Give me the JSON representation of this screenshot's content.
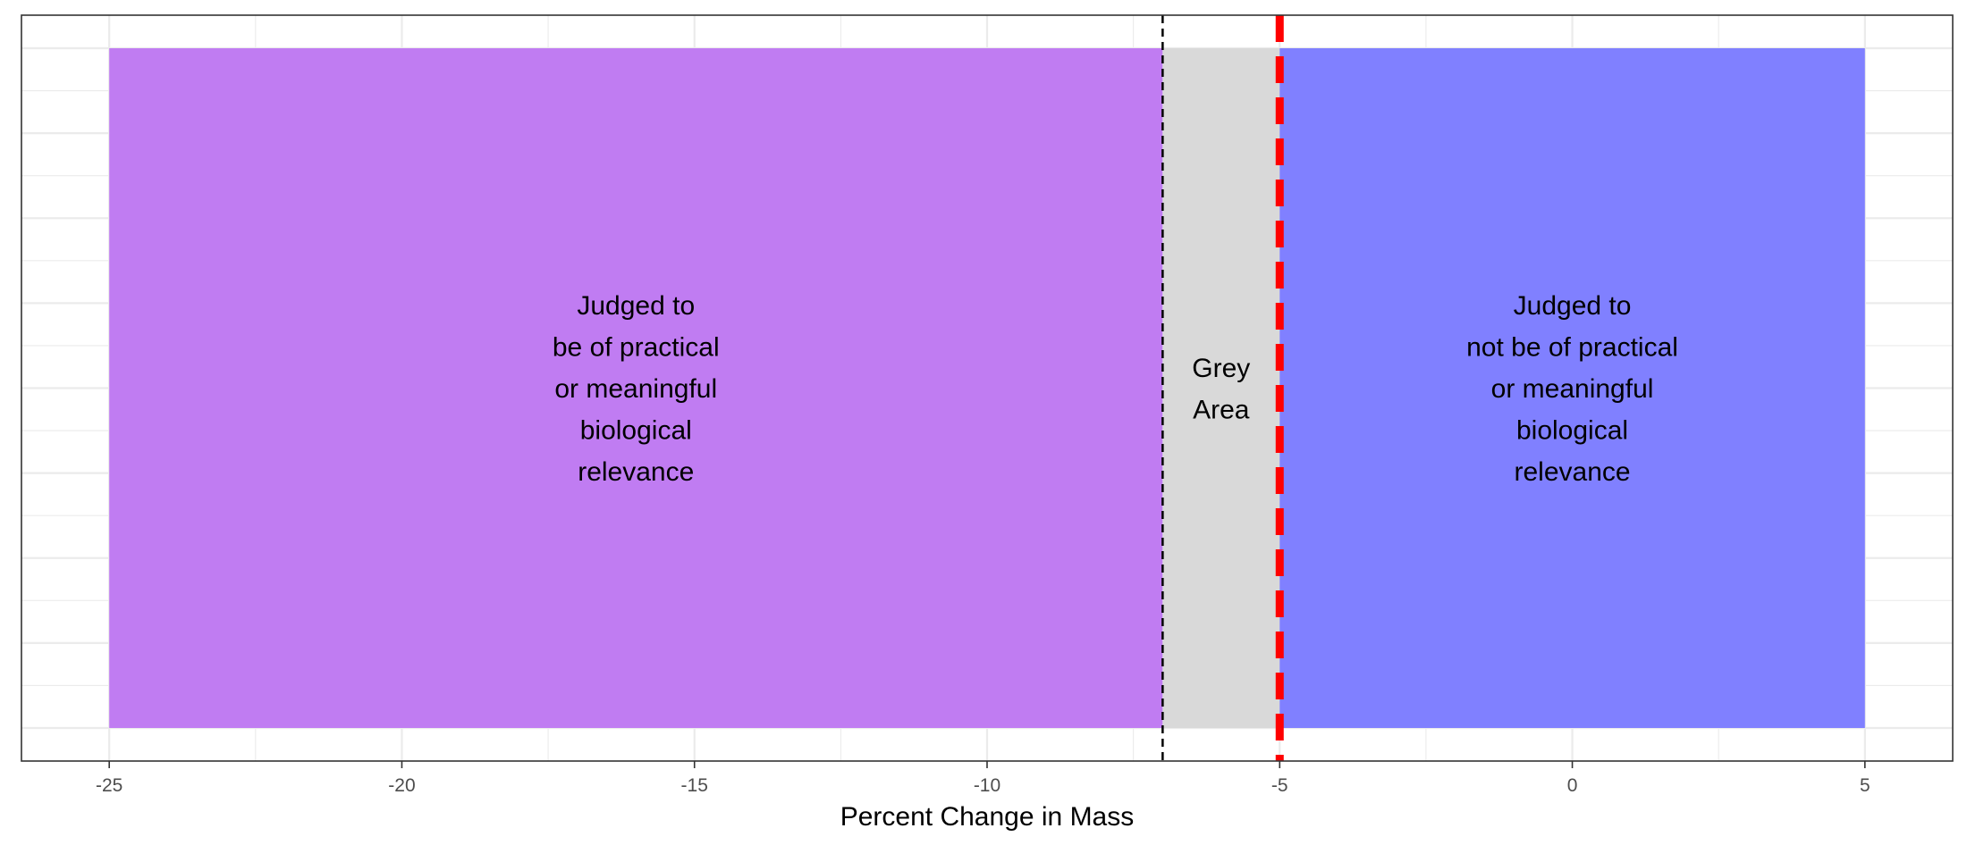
{
  "chart_data": {
    "type": "bar",
    "orientation": "horizontal",
    "title": "",
    "xlabel": "Percent Change in Mass",
    "ylabel": "",
    "xlim": [
      -26.5,
      6.5
    ],
    "x_ticks": [
      -25,
      -20,
      -15,
      -10,
      -5,
      0,
      5
    ],
    "x_tick_labels": [
      "-25",
      "-20",
      "-15",
      "-10",
      "-5",
      "0",
      "5"
    ],
    "y_ticks_visible": false,
    "grid": true,
    "legend": "none",
    "regions": [
      {
        "name": "practical",
        "x_start": -25,
        "x_end": -7,
        "color": "#c07cf2",
        "label_lines": [
          "Judged to",
          "be of practical",
          "or meaningful",
          "biological",
          "relevance"
        ]
      },
      {
        "name": "grey-area",
        "x_start": -7,
        "x_end": -5,
        "color": "#d9d9d9",
        "label_lines": [
          "Grey",
          "Area"
        ]
      },
      {
        "name": "not-practical",
        "x_start": -5,
        "x_end": 5,
        "color": "#8080ff",
        "label_lines": [
          "Judged to",
          "not be of practical",
          "or meaningful",
          "biological",
          "relevance"
        ]
      }
    ],
    "vlines": [
      {
        "name": "black-threshold-line",
        "x": -7,
        "color": "#000000",
        "style": "dashed"
      },
      {
        "name": "red-threshold-line",
        "x": -5,
        "color": "#ff0000",
        "style": "dashed"
      }
    ]
  }
}
